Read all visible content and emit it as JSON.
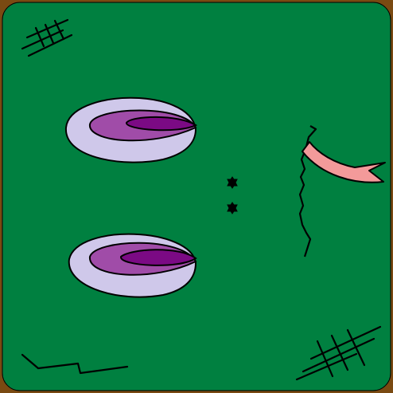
{
  "scene": {
    "name": "puzzle-board",
    "colors": {
      "frame": "#7a4a12",
      "felt": "#008040",
      "pod_outer": "#cfc8ea",
      "pod_middle": "#a04ca8",
      "pod_inner": "#7b0a84",
      "flag": "#f39a9a",
      "ink": "#000000"
    },
    "icons": [
      "hash-scratch-icon",
      "pod-icon",
      "dot-icon",
      "flag-icon",
      "crack-icon",
      "zigzag-icon"
    ]
  }
}
